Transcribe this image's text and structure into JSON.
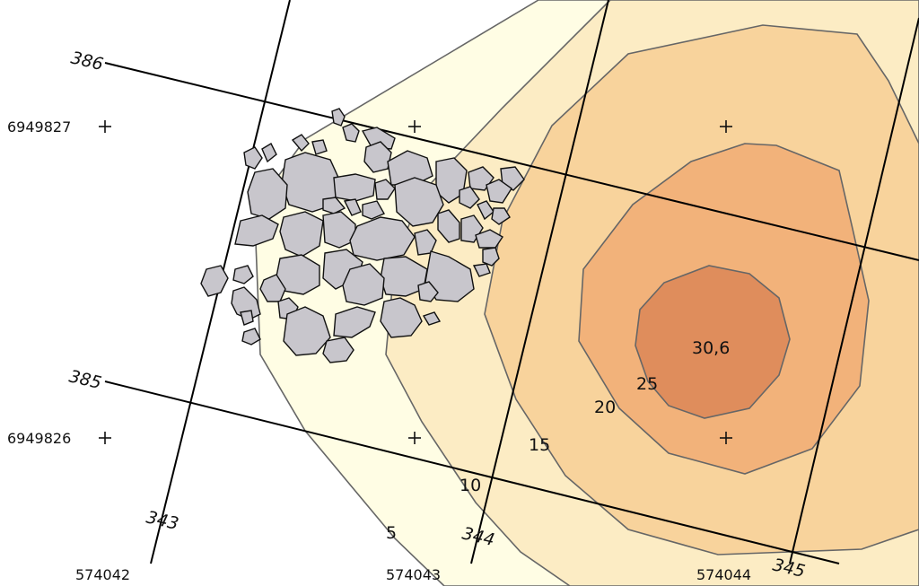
{
  "map": {
    "colors": {
      "background": "#ffffff",
      "level_5": "#fffde4",
      "level_10": "#fcecc4",
      "level_15": "#f8d39c",
      "level_20": "#f2b27a",
      "level_25": "#df8d5c",
      "contour_stroke": "#666666",
      "stone_fill": "#c8c6cc"
    },
    "northing_labels": [
      "6949827",
      "6949826"
    ],
    "easting_labels": [
      "574042",
      "574043",
      "574044"
    ],
    "contour_labels": [
      "5",
      "10",
      "15",
      "20",
      "25"
    ],
    "peak_label": "30,6",
    "survey_line_labels": [
      "386",
      "385",
      "343",
      "344",
      "345"
    ]
  }
}
